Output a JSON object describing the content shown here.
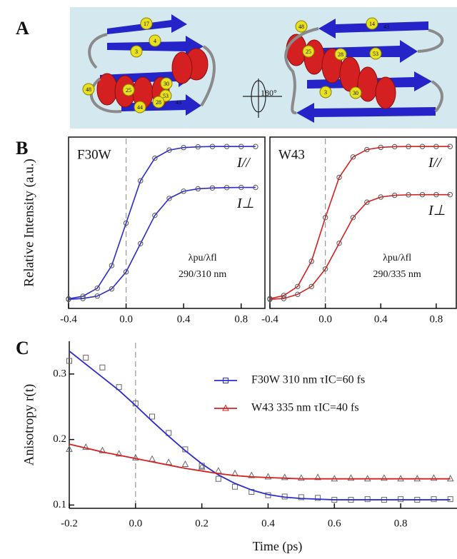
{
  "structure": {
    "panel": "A",
    "residues": [
      "17",
      "4",
      "3",
      "30",
      "53",
      "48",
      "25",
      "28",
      "44",
      "43",
      "48",
      "14",
      "43",
      "25",
      "28",
      "53",
      "3",
      "30"
    ],
    "rotation": "180°"
  },
  "chart_data": [
    {
      "type": "line",
      "panel": "B",
      "title": "F30W",
      "ylabel": "Relative Intensity (a.u.)",
      "annotation": "λpu/λfl",
      "wavelengths": "290/310 nm",
      "x": [
        -0.4,
        -0.3,
        -0.2,
        -0.1,
        0,
        0.1,
        0.2,
        0.3,
        0.4,
        0.5,
        0.6,
        0.7,
        0.8,
        0.9
      ],
      "xlim": [
        -0.4,
        0.97
      ],
      "xticks": [
        -0.4,
        {
          "value": 0,
          "label": "0.0"
        },
        0.4,
        0.8
      ],
      "ylim": [
        0,
        1
      ],
      "marker_color": "#555",
      "series": [
        {
          "name": "I//",
          "color": "#2b2bd0",
          "values": [
            0.056,
            0.071,
            0.118,
            0.25,
            0.498,
            0.745,
            0.877,
            0.924,
            0.939,
            0.943,
            0.945,
            0.945,
            0.945,
            0.945
          ]
        },
        {
          "name": "I⊥",
          "color": "#2b2bd0",
          "values": [
            0.053,
            0.058,
            0.072,
            0.114,
            0.213,
            0.378,
            0.543,
            0.642,
            0.684,
            0.698,
            0.703,
            0.705,
            0.706,
            0.706
          ]
        }
      ]
    },
    {
      "type": "line",
      "title": "W43",
      "annotation": "λpu/λfl",
      "wavelengths": "290/335 nm",
      "x": [
        -0.4,
        -0.3,
        -0.2,
        -0.1,
        0,
        0.1,
        0.2,
        0.3,
        0.4,
        0.5,
        0.6,
        0.7,
        0.8,
        0.9
      ],
      "xlim": [
        -0.4,
        0.95
      ],
      "xticks": [
        -0.4,
        {
          "value": 0,
          "label": "0.0"
        },
        0.4,
        0.8
      ],
      "ylim": [
        0,
        1
      ],
      "marker_color": "#555",
      "series": [
        {
          "name": "I//",
          "color": "#d42020",
          "values": [
            0.057,
            0.075,
            0.128,
            0.275,
            0.53,
            0.765,
            0.884,
            0.927,
            0.94,
            0.944,
            0.945,
            0.945,
            0.945,
            0.945
          ]
        },
        {
          "name": "I⊥",
          "color": "#d42020",
          "values": [
            0.053,
            0.058,
            0.082,
            0.128,
            0.23,
            0.38,
            0.53,
            0.62,
            0.65,
            0.66,
            0.663,
            0.664,
            0.664,
            0.664
          ]
        }
      ]
    },
    {
      "type": "scatter",
      "panel": "C",
      "ylabel": "Anisotropy r(t)",
      "xlabel": "Time (ps)",
      "x": [
        -0.2,
        -0.15,
        -0.1,
        -0.05,
        0,
        0.05,
        0.1,
        0.15,
        0.2,
        0.25,
        0.3,
        0.35,
        0.4,
        0.45,
        0.5,
        0.55,
        0.6,
        0.65,
        0.7,
        0.75,
        0.8,
        0.85,
        0.9,
        0.95
      ],
      "xlim": [
        -0.2,
        0.97
      ],
      "xticks": [
        -0.2,
        {
          "value": 0,
          "label": "0.0"
        },
        0.2,
        0.4,
        0.6,
        0.8
      ],
      "ylim": [
        0.095,
        0.35
      ],
      "yticks": [
        0.1,
        0.2,
        0.3
      ],
      "marker_color": "#666",
      "series": [
        {
          "name": "F30W 310 nm  τIC=60 fs",
          "color": "#2b2bd0",
          "marker": "square",
          "values": [
            0.32,
            0.325,
            0.31,
            0.28,
            0.255,
            0.235,
            0.21,
            0.185,
            0.16,
            0.14,
            0.128,
            0.12,
            0.115,
            0.113,
            0.112,
            0.111,
            0.108,
            0.108,
            0.109,
            0.108,
            0.109,
            0.108,
            0.109,
            0.109
          ],
          "fit": [
            0.335,
            0.315,
            0.295,
            0.275,
            0.252,
            0.228,
            0.205,
            0.183,
            0.163,
            0.146,
            0.133,
            0.123,
            0.116,
            0.112,
            0.11,
            0.109,
            0.108,
            0.108,
            0.108,
            0.108,
            0.108,
            0.108,
            0.108,
            0.108
          ]
        },
        {
          "name": "W43 335 nm  τIC=40 fs",
          "color": "#d42020",
          "marker": "triangle",
          "values": [
            0.185,
            0.188,
            0.183,
            0.178,
            0.172,
            0.17,
            0.165,
            0.162,
            0.158,
            0.152,
            0.148,
            0.145,
            0.143,
            0.142,
            0.141,
            0.142,
            0.14,
            0.141,
            0.14,
            0.141,
            0.14,
            0.14,
            0.141,
            0.14
          ],
          "fit": [
            0.193,
            0.187,
            0.181,
            0.176,
            0.171,
            0.166,
            0.161,
            0.156,
            0.152,
            0.148,
            0.145,
            0.143,
            0.142,
            0.141,
            0.14,
            0.14,
            0.14,
            0.14,
            0.14,
            0.14,
            0.14,
            0.14,
            0.14,
            0.14
          ]
        }
      ]
    }
  ]
}
